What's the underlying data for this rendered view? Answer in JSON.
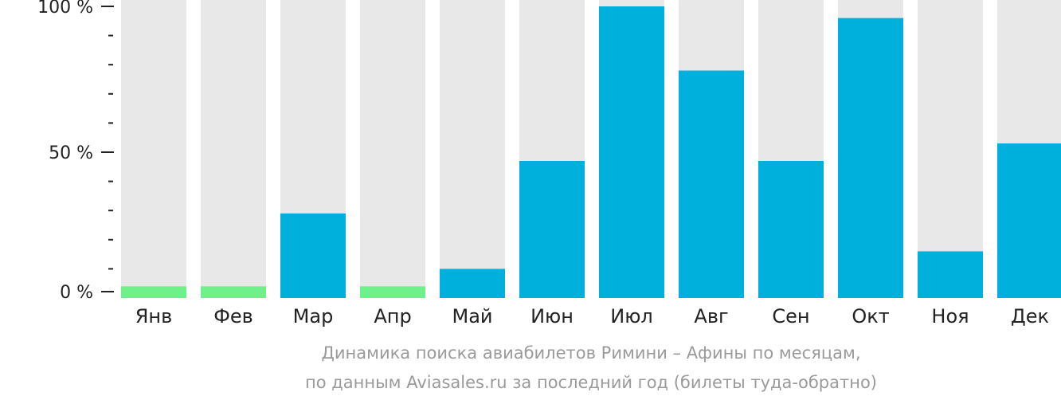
{
  "chart_data": {
    "type": "bar",
    "categories": [
      "Янв",
      "Фев",
      "Мар",
      "Апр",
      "Май",
      "Июн",
      "Июл",
      "Авг",
      "Сен",
      "Окт",
      "Ноя",
      "Дек"
    ],
    "values": [
      4,
      4,
      29,
      4,
      10,
      47,
      100,
      78,
      47,
      96,
      16,
      53
    ],
    "ylim": [
      0,
      100
    ],
    "y_ticks": [
      "0 %",
      "50 %",
      "100 %"
    ],
    "y_tick_values": [
      0,
      50,
      100
    ],
    "minor_tick_step": 10,
    "highlight_threshold": 5,
    "colors": {
      "bar": "#00b0dc",
      "bar_low": "#6ef08a",
      "background_bar": "#e8e8e8",
      "axis": "#222222"
    },
    "caption_line1": "Динамика поиска авиабилетов Римини – Афины по месяцам,",
    "caption_line2": "по данным Aviasales.ru за последний год (билеты туда-обратно)",
    "grid": false,
    "legend": "none"
  }
}
